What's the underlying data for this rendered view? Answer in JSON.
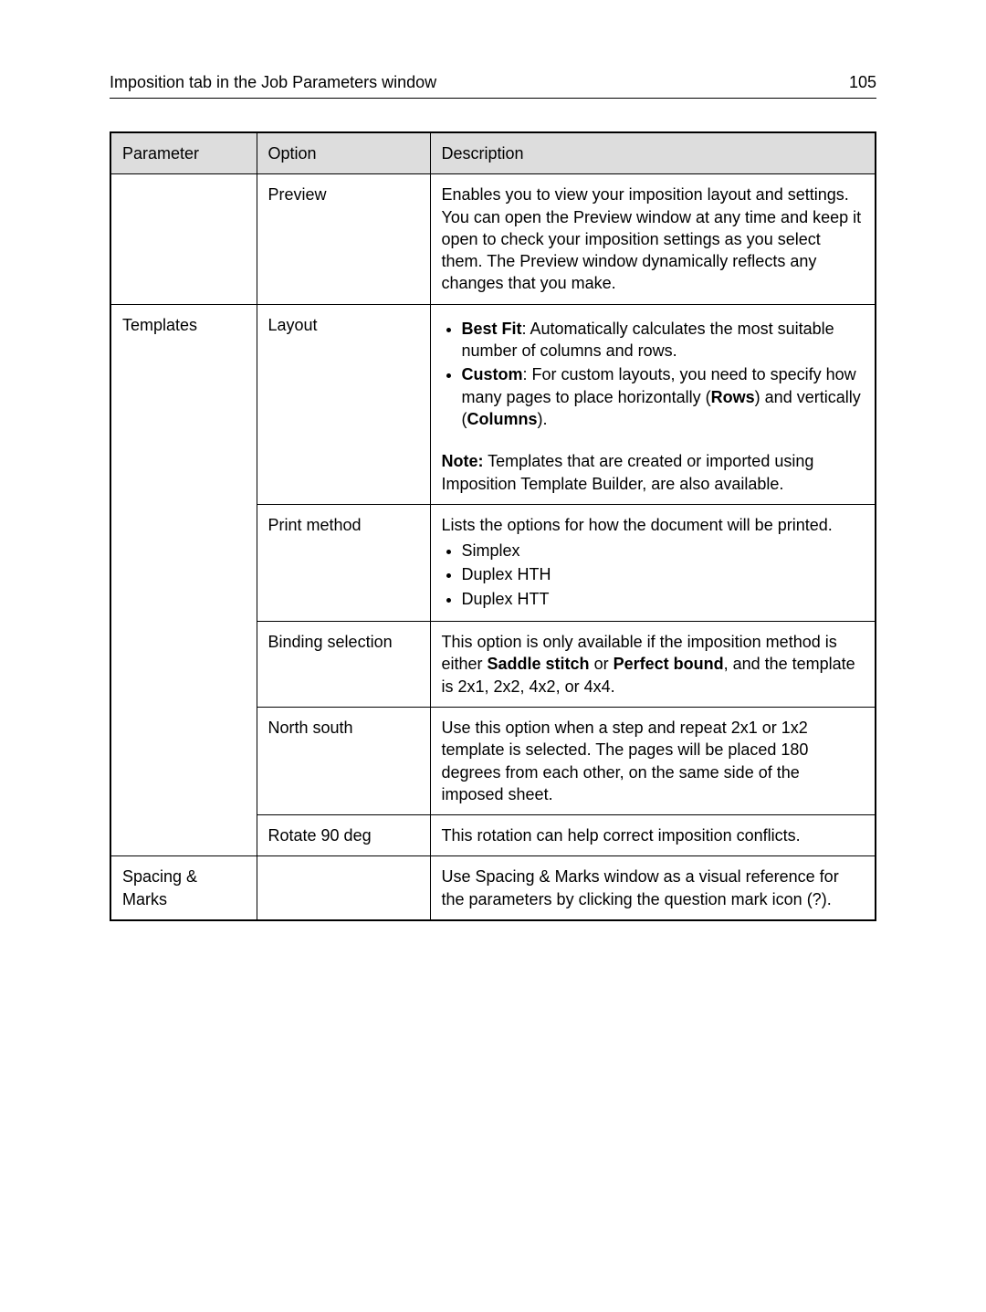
{
  "header": {
    "title": "Imposition tab in the Job Parameters window",
    "page": "105"
  },
  "table": {
    "columns": [
      "Parameter",
      "Option",
      "Description"
    ],
    "rows": {
      "preview": {
        "parameter": "",
        "option": "Preview",
        "description": "Enables you to view your imposition layout and settings. You can open the Preview window at any time and keep it open to check your imposition settings as you select them. The Preview window dynamically reflects any changes that you make."
      },
      "layout": {
        "parameter": "Templates",
        "option": "Layout",
        "item1": {
          "label": "Best Fit",
          "text": ": Automatically calculates the most suitable number of columns and rows."
        },
        "item2": {
          "label": "Custom",
          "text_a": ": For custom layouts, you need to specify how many pages to place horizontally (",
          "rows_label": "Rows",
          "text_b": ") and vertically (",
          "cols_label": "Columns",
          "text_c": ")."
        },
        "note_label": "Note:",
        "note_text": " Templates that are created or imported using Imposition Template Builder, are also available."
      },
      "print_method": {
        "parameter": "",
        "option": "Print method",
        "intro": "Lists the options for how the document will be printed.",
        "opt1": "Simplex",
        "opt2": "Duplex HTH",
        "opt3": "Duplex HTT"
      },
      "binding": {
        "parameter": "",
        "option": "Binding selection",
        "text_a": "This option is only available if the imposition method is either ",
        "b1": "Saddle stitch",
        "text_b": " or ",
        "b2": "Perfect bound",
        "text_c": ", and the template is 2x1, 2x2, 4x2, or 4x4."
      },
      "north_south": {
        "parameter": "",
        "option": "North south",
        "description": "Use this option when a step and repeat 2x1 or 1x2 template is selected. The pages will be placed 180 degrees from each other, on the same side of the imposed sheet."
      },
      "rotate": {
        "parameter": "",
        "option": "Rotate 90 deg",
        "description": "This rotation can help correct imposition conflicts."
      },
      "spacing": {
        "parameter": "Spacing & Marks",
        "option": "",
        "description": "Use Spacing & Marks window as a visual reference for the parameters by clicking the question mark icon (?)."
      }
    }
  }
}
